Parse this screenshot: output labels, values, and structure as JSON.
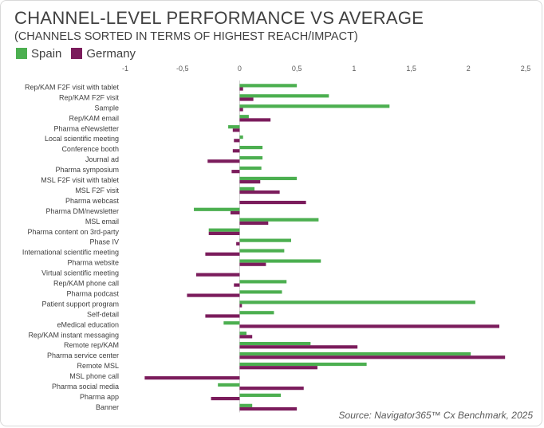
{
  "title": "CHANNEL-LEVEL PERFORMANCE VS AVERAGE",
  "subtitle": "(CHANNELS SORTED IN TERMS OF HIGHEST REACH/IMPACT)",
  "source": "Source: Navigator365™ Cx Benchmark, 2025",
  "colors": {
    "spain": "#4caf50",
    "germany": "#7b1c5c"
  },
  "chart_data": {
    "type": "bar",
    "orientation": "horizontal",
    "title": "CHANNEL-LEVEL PERFORMANCE VS AVERAGE",
    "subtitle": "(CHANNELS SORTED IN TERMS OF HIGHEST REACH/IMPACT)",
    "xlim": [
      -1,
      2.5
    ],
    "xticks": [
      -1,
      -0.5,
      0,
      0.5,
      1,
      1.5,
      2,
      2.5
    ],
    "xtick_labels": [
      "-1",
      "-0,5",
      "0",
      "0,5",
      "1",
      "1,5",
      "2",
      "2,5"
    ],
    "legend_position": "top-left",
    "categories": [
      "Rep/KAM F2F visit with tablet",
      "Rep/KAM F2F visit",
      "Sample",
      "Rep/KAM email",
      "Pharma eNewsletter",
      "Local scientific meeting",
      "Conference booth",
      "Journal ad",
      "Pharma symposium",
      "MSL F2F visit with tablet",
      "MSL F2F visit",
      "Pharma webcast",
      "Pharma DM/newsletter",
      "MSL email",
      "Pharma content on 3rd-party",
      "Phase IV",
      "International scientific meeting",
      "Pharma website",
      "Virtual scientific meeting",
      "Rep/KAM phone call",
      "Pharma podcast",
      "Patient support program",
      "Self-detail",
      "eMedical education",
      "Rep/KAM instant messaging",
      "Remote rep/KAM",
      "Pharma service center",
      "Remote MSL",
      "MSL phone call",
      "Pharma social media",
      "Pharma app",
      "Banner"
    ],
    "series": [
      {
        "name": "Spain",
        "values": [
          0.5,
          0.78,
          1.31,
          0.08,
          -0.1,
          0.03,
          0.2,
          0.2,
          0.19,
          0.5,
          0.13,
          0.0,
          -0.4,
          0.69,
          -0.27,
          0.45,
          0.39,
          0.71,
          0.0,
          0.41,
          0.37,
          2.06,
          0.3,
          -0.14,
          0.06,
          0.62,
          2.02,
          1.11,
          0.0,
          -0.19,
          0.36,
          0.11
        ]
      },
      {
        "name": "Germany",
        "values": [
          0.03,
          0.12,
          0.03,
          0.27,
          -0.06,
          -0.05,
          -0.06,
          -0.28,
          -0.07,
          0.18,
          0.35,
          0.58,
          -0.08,
          0.25,
          -0.27,
          -0.03,
          -0.3,
          0.23,
          -0.38,
          -0.05,
          -0.46,
          0.02,
          -0.3,
          2.27,
          0.11,
          1.03,
          2.32,
          0.68,
          -0.83,
          0.56,
          -0.25,
          0.5
        ]
      }
    ]
  }
}
